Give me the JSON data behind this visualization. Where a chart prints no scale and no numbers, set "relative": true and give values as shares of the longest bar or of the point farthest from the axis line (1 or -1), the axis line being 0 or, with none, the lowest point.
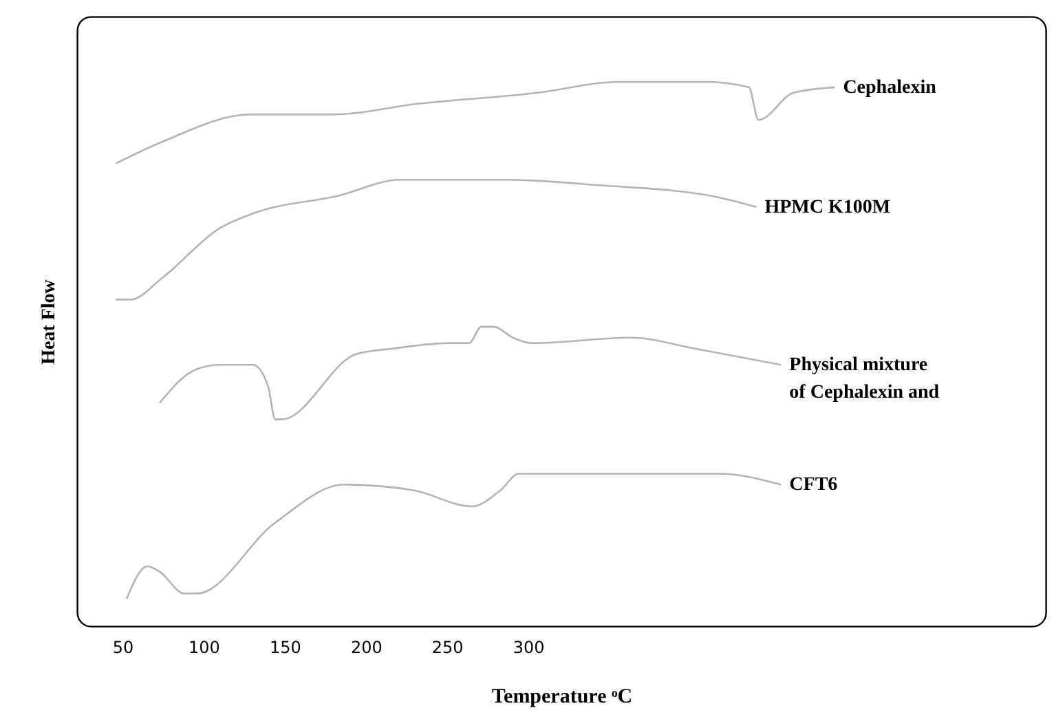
{
  "chart_data": {
    "type": "line",
    "xlabel": "Temperature ᵒC",
    "ylabel": "Heat Flow",
    "relative": true,
    "xlim": [
      22,
      619
    ],
    "xticks": [
      50,
      100,
      150,
      200,
      250,
      300
    ],
    "tick_labels": "x",
    "grid": false,
    "marker": "none",
    "line_style": "solid",
    "series": [
      {
        "name": "Cephalexin",
        "color": "#b4b4b4",
        "x": [
          45.8,
          74.6,
          128.8,
          178.8,
          233,
          306,
          356,
          410,
          436,
          442,
          463.6,
          489
        ],
        "values": [
          0.85,
          0.89,
          0.94,
          0.94,
          0.96,
          0.98,
          1.0,
          1.0,
          0.99,
          0.93,
          0.98,
          0.99
        ]
      },
      {
        "name": "HPMC K100M",
        "color": "#b4b4b4",
        "x": [
          45.8,
          55.1,
          74.6,
          109.3,
          132.2,
          182.2,
          221.2,
          286.4,
          344.1,
          413.6,
          440.7
        ],
        "values": [
          0.6,
          0.6,
          0.64,
          0.73,
          0.76,
          0.79,
          0.82,
          0.82,
          0.81,
          0.79,
          0.77
        ]
      },
      {
        "name": "Physical mixture of Cephalexin and",
        "color": "#b4b4b4",
        "x": [
          72.9,
          94.1,
          109.3,
          130.5,
          139.8,
          144.1,
          148.3,
          194.1,
          216.9,
          251.7,
          263.6,
          271.2,
          278.8,
          290.7,
          301.7,
          363.6,
          402.5,
          455.9
        ],
        "values": [
          0.41,
          0.47,
          0.48,
          0.48,
          0.44,
          0.38,
          0.38,
          0.5,
          0.51,
          0.52,
          0.52,
          0.55,
          0.55,
          0.53,
          0.52,
          0.53,
          0.51,
          0.48
        ]
      },
      {
        "name": "CFT6",
        "color": "#b4b4b4",
        "x": [
          52.5,
          65.3,
          72.9,
          88.1,
          95.8,
          144.1,
          186.4,
          228.8,
          265.3,
          283.1,
          294.1,
          317.8,
          348.3,
          375.4,
          417.8,
          455.9
        ],
        "values": [
          0.05,
          0.11,
          0.1,
          0.06,
          0.06,
          0.19,
          0.26,
          0.25,
          0.22,
          0.25,
          0.28,
          0.28,
          0.28,
          0.28,
          0.28,
          0.26
        ]
      }
    ]
  }
}
